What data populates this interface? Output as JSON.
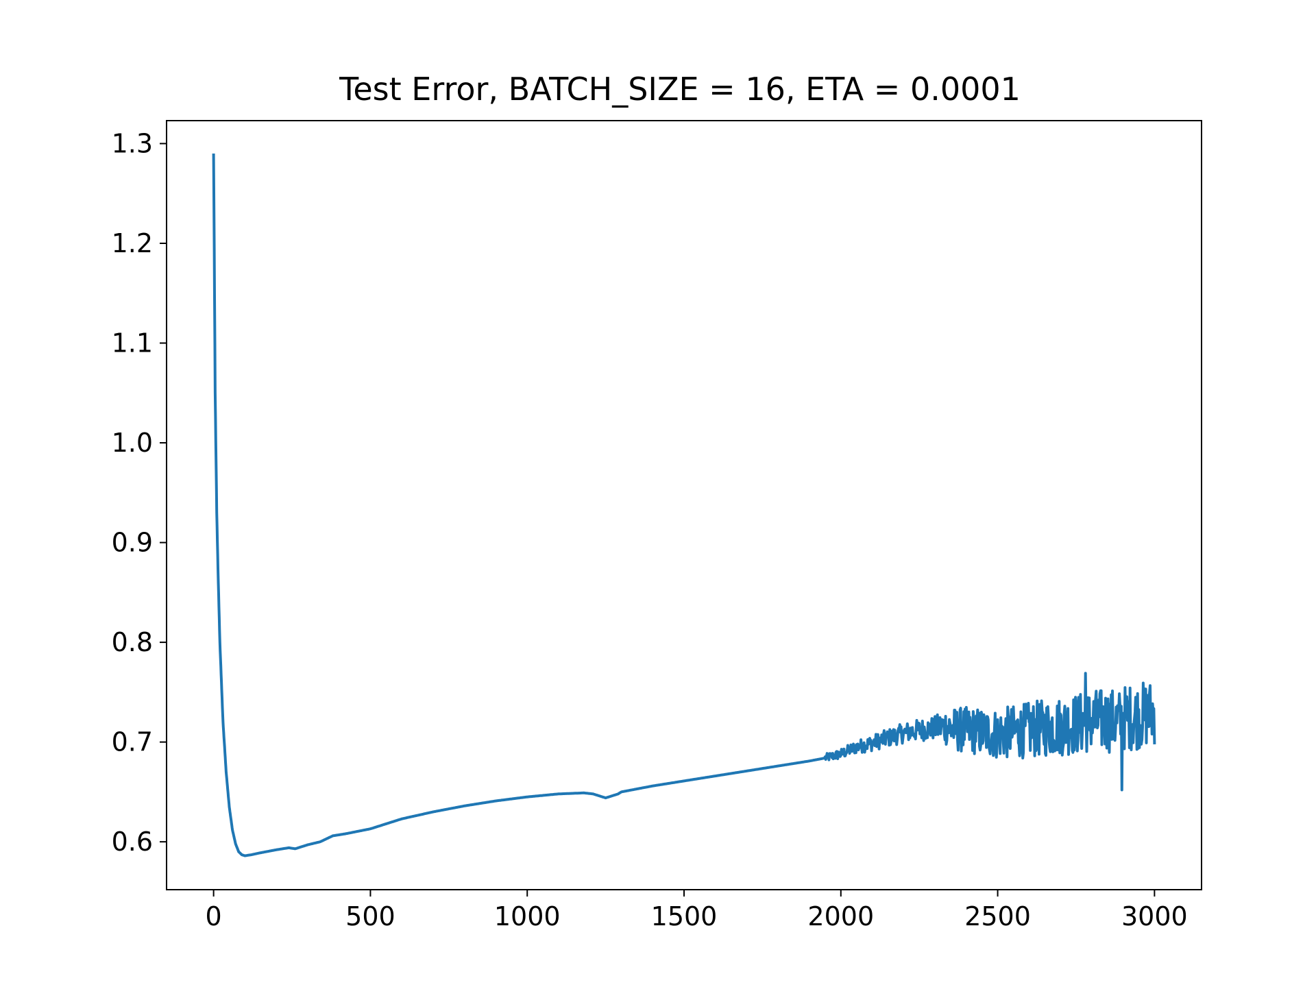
{
  "chart_data": {
    "type": "line",
    "title": "Test Error, BATCH_SIZE = 16, ETA = 0.0001",
    "xlabel": "",
    "ylabel": "",
    "xlim": [
      -150,
      3150
    ],
    "ylim": [
      0.552,
      1.323
    ],
    "x_ticks": [
      0,
      500,
      1000,
      1500,
      2000,
      2500,
      3000
    ],
    "x_tick_labels": [
      "0",
      "500",
      "1000",
      "1500",
      "2000",
      "2500",
      "3000"
    ],
    "y_ticks": [
      0.6,
      0.7,
      0.8,
      0.9,
      1.0,
      1.1,
      1.2,
      1.3
    ],
    "y_tick_labels": [
      "0.6",
      "0.7",
      "0.8",
      "0.9",
      "1.0",
      "1.1",
      "1.2",
      "1.3"
    ],
    "grid": false,
    "legend": "none",
    "line_color": "#1f77b4",
    "series": [
      {
        "x": [
          0,
          5,
          10,
          15,
          20,
          25,
          30,
          40,
          50,
          60,
          70,
          80,
          90,
          100,
          120,
          150,
          200,
          240,
          260,
          300,
          340,
          380,
          420,
          500,
          600,
          700,
          800,
          900,
          1000,
          1100,
          1180,
          1210,
          1250,
          1290,
          1300,
          1400,
          1500,
          1600,
          1700,
          1800,
          1900,
          1950,
          2000,
          2050,
          2100,
          2150,
          2200,
          2250,
          2300,
          2340,
          2350,
          2400,
          2450,
          2500,
          2550,
          2600,
          2650,
          2700,
          2750,
          2780,
          2800,
          2850,
          2895,
          2900,
          2950,
          3000
        ],
        "y": [
          1.29,
          1.05,
          0.93,
          0.86,
          0.8,
          0.76,
          0.72,
          0.67,
          0.635,
          0.612,
          0.598,
          0.59,
          0.587,
          0.586,
          0.587,
          0.589,
          0.592,
          0.594,
          0.593,
          0.597,
          0.6,
          0.606,
          0.608,
          0.613,
          0.623,
          0.63,
          0.636,
          0.641,
          0.645,
          0.648,
          0.649,
          0.648,
          0.644,
          0.648,
          0.65,
          0.656,
          0.661,
          0.666,
          0.671,
          0.676,
          0.681,
          0.684,
          0.688,
          0.695,
          0.699,
          0.704,
          0.709,
          0.712,
          0.714,
          0.716,
          0.713,
          0.712,
          0.71,
          0.708,
          0.71,
          0.712,
          0.714,
          0.716,
          0.718,
          0.72,
          0.721,
          0.722,
          0.72,
          0.724,
          0.726,
          0.73
        ]
      }
    ],
    "noise_amplitude": [
      {
        "x": 1950,
        "amp": 0.004
      },
      {
        "x": 2100,
        "amp": 0.008
      },
      {
        "x": 2300,
        "amp": 0.012
      },
      {
        "x": 2350,
        "amp": 0.022
      },
      {
        "x": 2600,
        "amp": 0.028
      },
      {
        "x": 2800,
        "amp": 0.032
      },
      {
        "x": 3000,
        "amp": 0.034
      }
    ]
  }
}
